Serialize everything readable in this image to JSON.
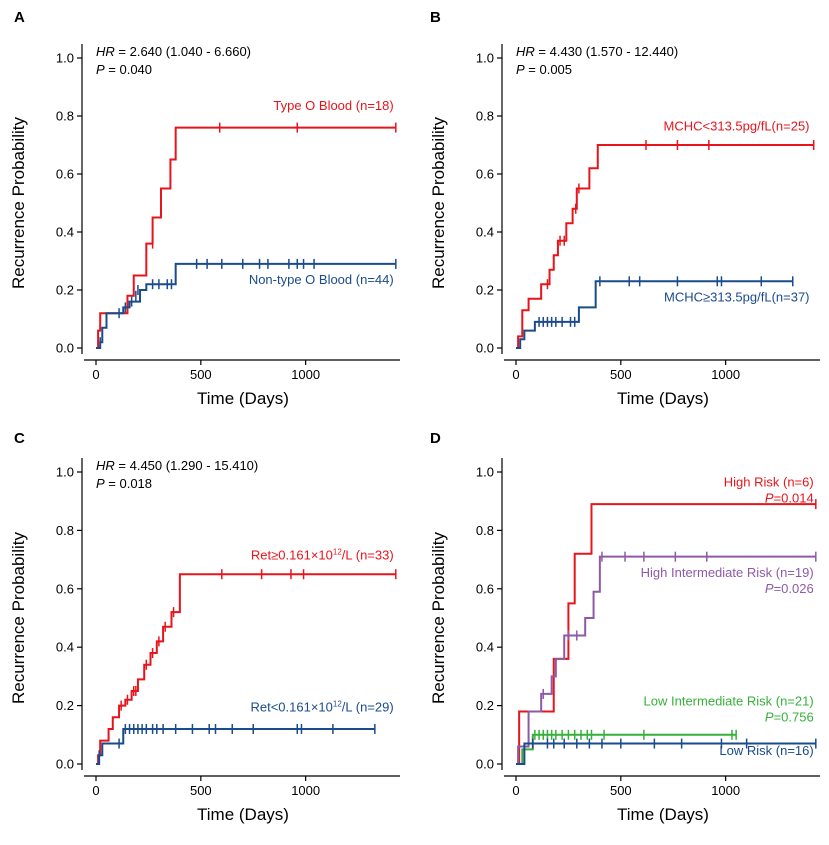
{
  "chart_data": [
    {
      "panel": "A",
      "type": "line",
      "subtype": "kaplan-meier",
      "xlabel": "Time (Days)",
      "ylabel": "Recurrence Probability",
      "xlim": [
        0,
        1450
      ],
      "ylim": [
        0,
        1.0
      ],
      "xticks": [
        0,
        500,
        1000
      ],
      "yticks": [
        0.0,
        0.2,
        0.4,
        0.6,
        0.8,
        1.0
      ],
      "hr_label": "HR",
      "hr_value": " = 2.640 (1.040 - 6.660)",
      "p_label": "P",
      "p_value": " = 0.040",
      "series": [
        {
          "name": "Type O Blood (n=18)",
          "color": "#e8141c",
          "steps": [
            [
              0,
              0
            ],
            [
              10,
              0.06
            ],
            [
              20,
              0.12
            ],
            [
              150,
              0.18
            ],
            [
              180,
              0.25
            ],
            [
              240,
              0.36
            ],
            [
              270,
              0.45
            ],
            [
              310,
              0.55
            ],
            [
              355,
              0.65
            ],
            [
              380,
              0.76
            ],
            [
              1430,
              0.76
            ]
          ],
          "censor": [
            [
              270,
              0.36
            ],
            [
              590,
              0.76
            ],
            [
              960,
              0.76
            ],
            [
              1430,
              0.76
            ]
          ],
          "label_lines": [
            "Type O Blood (n=18)"
          ],
          "label_at": [
            1420,
            0.82
          ]
        },
        {
          "name": "Non-type O Blood (n=44)",
          "color": "#1a4b8c",
          "steps": [
            [
              0,
              0
            ],
            [
              20,
              0.02
            ],
            [
              30,
              0.07
            ],
            [
              50,
              0.12
            ],
            [
              130,
              0.14
            ],
            [
              160,
              0.16
            ],
            [
              210,
              0.2
            ],
            [
              240,
              0.22
            ],
            [
              380,
              0.29
            ],
            [
              1430,
              0.29
            ]
          ],
          "censor": [
            [
              20,
              0.02
            ],
            [
              110,
              0.12
            ],
            [
              140,
              0.14
            ],
            [
              170,
              0.16
            ],
            [
              190,
              0.18
            ],
            [
              200,
              0.2
            ],
            [
              270,
              0.22
            ],
            [
              300,
              0.22
            ],
            [
              340,
              0.22
            ],
            [
              360,
              0.22
            ],
            [
              480,
              0.29
            ],
            [
              530,
              0.29
            ],
            [
              600,
              0.29
            ],
            [
              700,
              0.29
            ],
            [
              780,
              0.29
            ],
            [
              820,
              0.29
            ],
            [
              920,
              0.29
            ],
            [
              960,
              0.29
            ],
            [
              990,
              0.29
            ],
            [
              1040,
              0.29
            ],
            [
              1430,
              0.29
            ]
          ],
          "label_lines": [
            "Non-type O Blood (n=44)"
          ],
          "label_at": [
            1420,
            0.22
          ]
        }
      ]
    },
    {
      "panel": "B",
      "type": "line",
      "subtype": "kaplan-meier",
      "xlabel": "Time (Days)",
      "ylabel": "Recurrence Probability",
      "xlim": [
        0,
        1450
      ],
      "ylim": [
        0,
        1.0
      ],
      "xticks": [
        0,
        500,
        1000
      ],
      "yticks": [
        0.0,
        0.2,
        0.4,
        0.6,
        0.8,
        1.0
      ],
      "hr_label": "HR",
      "hr_value": " = 4.430 (1.570 - 12.440)",
      "p_label": "P",
      "p_value": " = 0.005",
      "series": [
        {
          "name": "MCHC<313.5pg/fL(n=25)",
          "color": "#e8141c",
          "steps": [
            [
              0,
              0
            ],
            [
              10,
              0.04
            ],
            [
              30,
              0.13
            ],
            [
              60,
              0.17
            ],
            [
              120,
              0.22
            ],
            [
              160,
              0.27
            ],
            [
              180,
              0.32
            ],
            [
              200,
              0.37
            ],
            [
              240,
              0.43
            ],
            [
              270,
              0.48
            ],
            [
              290,
              0.55
            ],
            [
              350,
              0.62
            ],
            [
              390,
              0.7
            ],
            [
              1420,
              0.7
            ]
          ],
          "censor": [
            [
              150,
              0.22
            ],
            [
              210,
              0.37
            ],
            [
              230,
              0.37
            ],
            [
              285,
              0.48
            ],
            [
              300,
              0.55
            ],
            [
              620,
              0.7
            ],
            [
              770,
              0.7
            ],
            [
              920,
              0.7
            ],
            [
              1420,
              0.7
            ]
          ],
          "label_lines": [
            "MCHC<313.5pg/fL(n=25)"
          ],
          "label_at": [
            1400,
            0.75
          ]
        },
        {
          "name": "MCHC≥313.5pg/fL(n=37)",
          "color": "#1a4b8c",
          "steps": [
            [
              0,
              0
            ],
            [
              20,
              0.03
            ],
            [
              40,
              0.06
            ],
            [
              90,
              0.09
            ],
            [
              300,
              0.14
            ],
            [
              380,
              0.23
            ],
            [
              1320,
              0.23
            ]
          ],
          "censor": [
            [
              110,
              0.09
            ],
            [
              130,
              0.09
            ],
            [
              150,
              0.09
            ],
            [
              170,
              0.09
            ],
            [
              190,
              0.09
            ],
            [
              220,
              0.09
            ],
            [
              260,
              0.09
            ],
            [
              280,
              0.09
            ],
            [
              400,
              0.23
            ],
            [
              540,
              0.23
            ],
            [
              590,
              0.23
            ],
            [
              770,
              0.23
            ],
            [
              960,
              0.23
            ],
            [
              980,
              0.23
            ],
            [
              1170,
              0.23
            ],
            [
              1320,
              0.23
            ]
          ],
          "label_lines": [
            "MCHC≥313.5pg/fL(n=37)"
          ],
          "label_at": [
            1400,
            0.16
          ]
        }
      ]
    },
    {
      "panel": "C",
      "type": "line",
      "subtype": "kaplan-meier",
      "xlabel": "Time (Days)",
      "ylabel": "Recurrence Probability",
      "xlim": [
        0,
        1450
      ],
      "ylim": [
        0,
        1.0
      ],
      "xticks": [
        0,
        500,
        1000
      ],
      "yticks": [
        0.0,
        0.2,
        0.4,
        0.6,
        0.8,
        1.0
      ],
      "hr_label": "HR",
      "hr_value": " = 4.450 (1.290 - 15.410)",
      "p_label": "P",
      "p_value": " = 0.018",
      "series": [
        {
          "name": "Ret≥0.161×10¹²/L (n=33)",
          "color": "#e8141c",
          "steps": [
            [
              0,
              0
            ],
            [
              10,
              0.03
            ],
            [
              20,
              0.08
            ],
            [
              60,
              0.12
            ],
            [
              80,
              0.16
            ],
            [
              110,
              0.2
            ],
            [
              140,
              0.22
            ],
            [
              170,
              0.25
            ],
            [
              200,
              0.29
            ],
            [
              230,
              0.34
            ],
            [
              260,
              0.38
            ],
            [
              290,
              0.42
            ],
            [
              320,
              0.47
            ],
            [
              360,
              0.52
            ],
            [
              400,
              0.65
            ],
            [
              1430,
              0.65
            ]
          ],
          "censor": [
            [
              120,
              0.2
            ],
            [
              150,
              0.22
            ],
            [
              180,
              0.25
            ],
            [
              190,
              0.25
            ],
            [
              240,
              0.34
            ],
            [
              270,
              0.38
            ],
            [
              300,
              0.42
            ],
            [
              330,
              0.47
            ],
            [
              370,
              0.52
            ],
            [
              600,
              0.65
            ],
            [
              790,
              0.65
            ],
            [
              930,
              0.65
            ],
            [
              990,
              0.65
            ],
            [
              1430,
              0.65
            ]
          ],
          "label_lines": [
            "Ret≥0.161×10",
            "12",
            "/L (n=33)"
          ],
          "label_at": [
            1420,
            0.7
          ]
        },
        {
          "name": "Ret<0.161×10¹²/L (n=29)",
          "color": "#1a4b8c",
          "steps": [
            [
              0,
              0
            ],
            [
              15,
              0.03
            ],
            [
              30,
              0.07
            ],
            [
              130,
              0.12
            ],
            [
              1330,
              0.12
            ]
          ],
          "censor": [
            [
              15,
              0.03
            ],
            [
              110,
              0.07
            ],
            [
              140,
              0.12
            ],
            [
              160,
              0.12
            ],
            [
              180,
              0.12
            ],
            [
              200,
              0.12
            ],
            [
              220,
              0.12
            ],
            [
              240,
              0.12
            ],
            [
              270,
              0.12
            ],
            [
              290,
              0.12
            ],
            [
              320,
              0.12
            ],
            [
              380,
              0.12
            ],
            [
              460,
              0.12
            ],
            [
              540,
              0.12
            ],
            [
              570,
              0.12
            ],
            [
              650,
              0.12
            ],
            [
              750,
              0.12
            ],
            [
              960,
              0.12
            ],
            [
              980,
              0.12
            ],
            [
              1130,
              0.12
            ],
            [
              1330,
              0.12
            ]
          ],
          "label_lines": [
            "Ret<0.161×10",
            "12",
            "/L (n=29)"
          ],
          "label_at": [
            1420,
            0.18
          ]
        }
      ]
    },
    {
      "panel": "D",
      "type": "line",
      "subtype": "kaplan-meier",
      "xlabel": "Time (Days)",
      "ylabel": "Recurrence Probability",
      "xlim": [
        0,
        1450
      ],
      "ylim": [
        0,
        1.0
      ],
      "xticks": [
        0,
        500,
        1000
      ],
      "yticks": [
        0.0,
        0.2,
        0.4,
        0.6,
        0.8,
        1.0
      ],
      "series": [
        {
          "name": "High Risk (n=6)",
          "color": "#e8141c",
          "steps": [
            [
              0,
              0
            ],
            [
              15,
              0.18
            ],
            [
              180,
              0.36
            ],
            [
              250,
              0.55
            ],
            [
              280,
              0.72
            ],
            [
              360,
              0.89
            ],
            [
              1430,
              0.89
            ]
          ],
          "censor": [
            [
              1430,
              0.89
            ]
          ],
          "label_lines": [
            "High Risk (n=6)"
          ],
          "label_at": [
            1420,
            0.95
          ],
          "p_label": "P",
          "p_value": "=0.014"
        },
        {
          "name": "High Intermediate Risk (n=19)",
          "color": "#8e5aa8",
          "steps": [
            [
              0,
              0
            ],
            [
              10,
              0.06
            ],
            [
              60,
              0.18
            ],
            [
              120,
              0.24
            ],
            [
              170,
              0.3
            ],
            [
              190,
              0.36
            ],
            [
              230,
              0.44
            ],
            [
              330,
              0.5
            ],
            [
              370,
              0.59
            ],
            [
              400,
              0.71
            ],
            [
              1430,
              0.71
            ]
          ],
          "censor": [
            [
              130,
              0.24
            ],
            [
              250,
              0.44
            ],
            [
              290,
              0.44
            ],
            [
              410,
              0.71
            ],
            [
              520,
              0.71
            ],
            [
              610,
              0.71
            ],
            [
              760,
              0.71
            ],
            [
              910,
              0.71
            ],
            [
              1430,
              0.71
            ]
          ],
          "label_lines": [
            "High Intermediate Risk (n=19)"
          ],
          "label_at": [
            1420,
            0.64
          ],
          "p_label": "P",
          "p_value": "=0.026"
        },
        {
          "name": "Low Intermediate Risk (n=21)",
          "color": "#36b03a",
          "steps": [
            [
              0,
              0
            ],
            [
              30,
              0.05
            ],
            [
              80,
              0.1
            ],
            [
              1050,
              0.1
            ]
          ],
          "censor": [
            [
              90,
              0.1
            ],
            [
              110,
              0.1
            ],
            [
              130,
              0.1
            ],
            [
              150,
              0.1
            ],
            [
              170,
              0.1
            ],
            [
              190,
              0.1
            ],
            [
              220,
              0.1
            ],
            [
              250,
              0.1
            ],
            [
              280,
              0.1
            ],
            [
              310,
              0.1
            ],
            [
              340,
              0.1
            ],
            [
              360,
              0.1
            ],
            [
              420,
              0.1
            ],
            [
              610,
              0.1
            ],
            [
              1030,
              0.1
            ],
            [
              1050,
              0.1
            ]
          ],
          "label_lines": [
            "Low Intermediate Risk (n=21)"
          ],
          "label_at": [
            1420,
            0.2
          ],
          "p_label": "P",
          "p_value": "=0.756"
        },
        {
          "name": "Low Risk (n=16)",
          "color": "#1a4b8c",
          "steps": [
            [
              0,
              0
            ],
            [
              40,
              0.07
            ],
            [
              1430,
              0.07
            ]
          ],
          "censor": [
            [
              80,
              0.07
            ],
            [
              150,
              0.07
            ],
            [
              180,
              0.07
            ],
            [
              230,
              0.07
            ],
            [
              290,
              0.07
            ],
            [
              350,
              0.07
            ],
            [
              410,
              0.07
            ],
            [
              500,
              0.07
            ],
            [
              660,
              0.07
            ],
            [
              790,
              0.07
            ],
            [
              980,
              0.07
            ],
            [
              1100,
              0.07
            ],
            [
              1430,
              0.07
            ]
          ],
          "label_lines": [
            "Low Risk (n=16)"
          ],
          "label_at": [
            1420,
            0.03
          ]
        }
      ]
    }
  ]
}
